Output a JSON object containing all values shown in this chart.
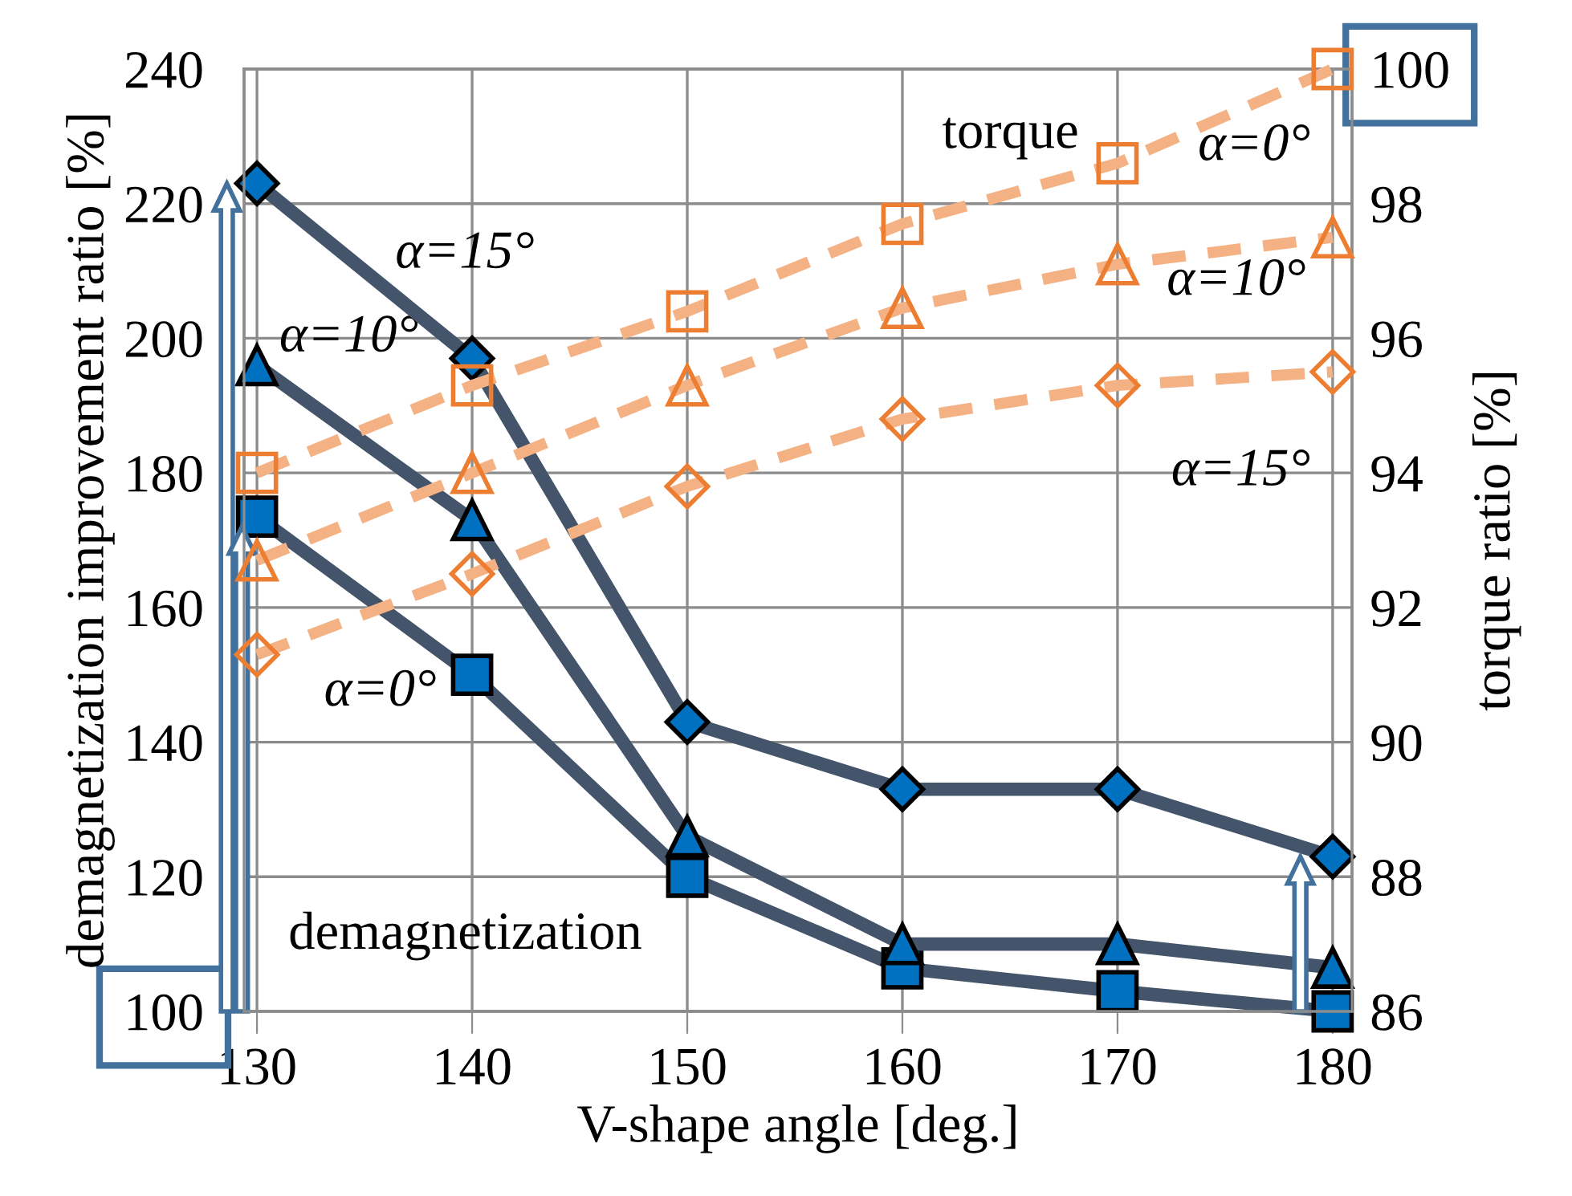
{
  "chart_data": {
    "type": "line",
    "xlabel": "V-shape angle [deg.]",
    "ylabel": "demagnetization improvement ratio [%]",
    "y2label": "torque ratio [%]",
    "x": [
      130,
      140,
      150,
      160,
      170,
      180
    ],
    "xlim": [
      129.4,
      180.9
    ],
    "xticks": [
      130,
      140,
      150,
      160,
      170,
      180
    ],
    "ylim": [
      100,
      240
    ],
    "yticks": [
      100,
      120,
      140,
      160,
      180,
      200,
      220,
      240
    ],
    "y2lim": [
      86,
      100
    ],
    "y2ticks": [
      86,
      88,
      90,
      92,
      94,
      96,
      98,
      100
    ],
    "grid": true,
    "legend": false,
    "series": [
      {
        "name": "α=15°",
        "color": "#44546a",
        "marker": "diamond",
        "line_style": "solid",
        "values": [
          223,
          197,
          143,
          133,
          133,
          123
        ]
      },
      {
        "name": "α=10°",
        "color": "#44546a",
        "marker": "triangle",
        "line_style": "solid",
        "values": [
          196,
          173,
          126,
          110,
          110,
          106.5
        ]
      },
      {
        "name": "α=0°",
        "color": "#44546a",
        "marker": "square",
        "line_style": "solid",
        "values": [
          173.5,
          150,
          120,
          106.4,
          103,
          100
        ]
      },
      {
        "name": "α=0°",
        "color": "#f4b183",
        "marker": "square",
        "line_style": "dashed",
        "axis": "y2",
        "values": [
          94.0,
          95.3,
          96.4,
          97.7,
          98.6,
          100
        ]
      },
      {
        "name": "α=10°",
        "color": "#f4b183",
        "marker": "triangle",
        "line_style": "dashed",
        "axis": "y2",
        "values": [
          92.7,
          94.0,
          95.3,
          96.45,
          97.1,
          97.5
        ]
      },
      {
        "name": "α=15°",
        "color": "#f4b183",
        "marker": "diamond",
        "line_style": "dashed",
        "axis": "y2",
        "values": [
          91.3,
          92.5,
          93.8,
          94.8,
          95.3,
          95.5
        ]
      }
    ],
    "annotations": [
      "torque",
      "demagnetization"
    ]
  }
}
